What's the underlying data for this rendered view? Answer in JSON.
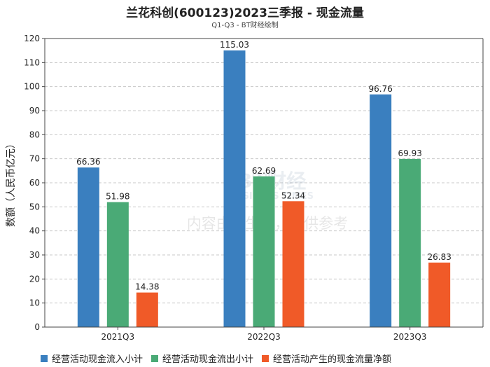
{
  "chart_data": {
    "type": "bar",
    "title": "兰花科创(600123)2023三季报 - 现金流量",
    "subtitle": "Q1-Q3 - BT财经绘制",
    "ylabel": "数额（人民币亿元）",
    "xlabel": "",
    "ylim": [
      0,
      120
    ],
    "yticks": [
      0,
      10,
      20,
      30,
      40,
      50,
      60,
      70,
      80,
      90,
      100,
      110,
      120
    ],
    "categories": [
      "2021Q3",
      "2022Q3",
      "2023Q3"
    ],
    "series": [
      {
        "name": "经营活动现金流入小计",
        "color": "#3a7fbf",
        "values": [
          66.36,
          115.03,
          96.76
        ]
      },
      {
        "name": "经营活动现金流出小计",
        "color": "#4aaa76",
        "values": [
          51.98,
          62.69,
          69.93
        ]
      },
      {
        "name": "经营活动产生的现金流量净额",
        "color": "#f05a28",
        "values": [
          14.38,
          52.34,
          26.83
        ]
      }
    ],
    "value_labels": [
      [
        "66.36",
        "115.03",
        "96.76"
      ],
      [
        "51.98",
        "62.69",
        "69.93"
      ],
      [
        "14.38",
        "52.34",
        "26.83"
      ]
    ],
    "grid": true,
    "legend_position": "bottom",
    "watermark": [
      "BT财经",
      "BUSINESS TIMES",
      "内容由AI生成，仅供参考"
    ]
  }
}
